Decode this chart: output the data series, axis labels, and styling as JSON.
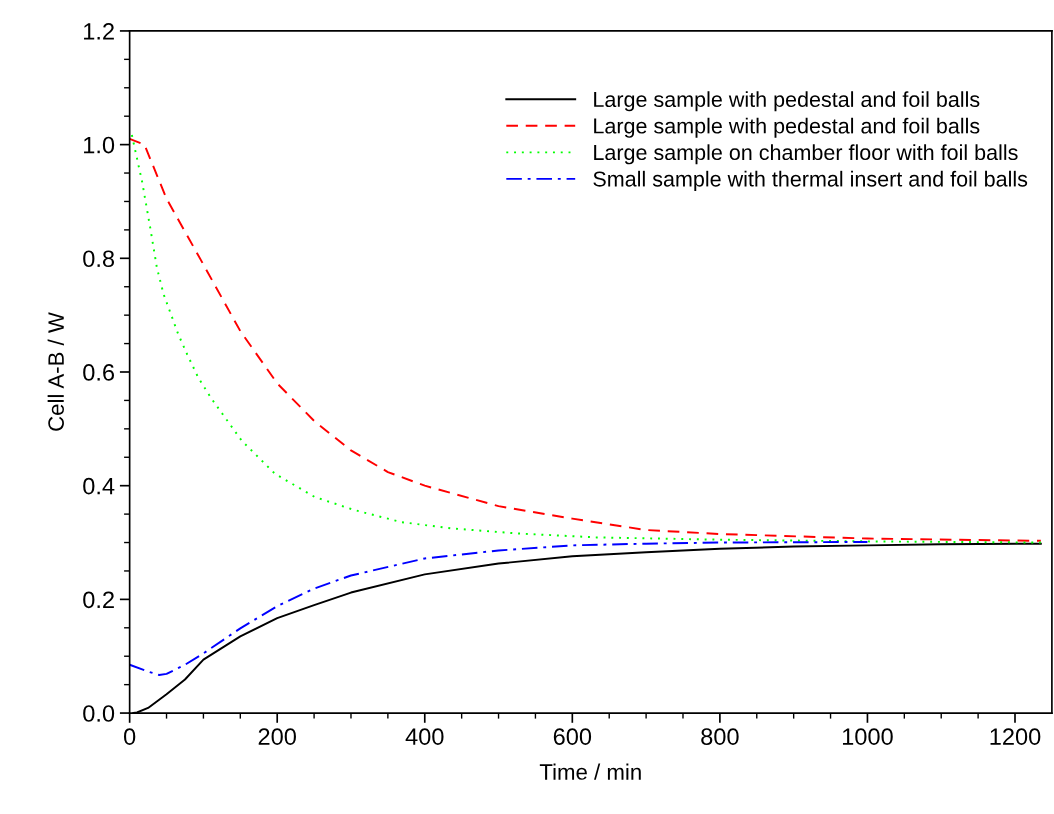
{
  "chart_data": {
    "type": "line",
    "xlabel": "Time / min",
    "ylabel": "Cell A-B / W",
    "xlim": [
      0,
      1250
    ],
    "ylim": [
      0,
      1.2
    ],
    "xticks": [
      0,
      {
        "value": 50,
        "label": null
      },
      {
        "value": 100,
        "label": null
      },
      {
        "value": 150,
        "label": null
      },
      200,
      {
        "value": 250,
        "label": null
      },
      {
        "value": 300,
        "label": null
      },
      {
        "value": 350,
        "label": null
      },
      400,
      {
        "value": 450,
        "label": null
      },
      {
        "value": 500,
        "label": null
      },
      {
        "value": 550,
        "label": null
      },
      600,
      {
        "value": 650,
        "label": null
      },
      {
        "value": 700,
        "label": null
      },
      {
        "value": 750,
        "label": null
      },
      800,
      {
        "value": 850,
        "label": null
      },
      {
        "value": 900,
        "label": null
      },
      {
        "value": 950,
        "label": null
      },
      1000,
      {
        "value": 1050,
        "label": null
      },
      {
        "value": 1100,
        "label": null
      },
      {
        "value": 1150,
        "label": null
      },
      1200
    ],
    "yticks": [
      {
        "value": 0,
        "label": "0.0"
      },
      {
        "value": 0.05,
        "label": null
      },
      {
        "value": 0.1,
        "label": null
      },
      {
        "value": 0.15,
        "label": null
      },
      0.2,
      {
        "value": 0.25,
        "label": null
      },
      {
        "value": 0.3,
        "label": null
      },
      {
        "value": 0.35,
        "label": null
      },
      0.4,
      {
        "value": 0.45,
        "label": null
      },
      {
        "value": 0.5,
        "label": null
      },
      {
        "value": 0.55,
        "label": null
      },
      0.6,
      {
        "value": 0.65,
        "label": null
      },
      {
        "value": 0.7,
        "label": null
      },
      {
        "value": 0.75,
        "label": null
      },
      0.8,
      {
        "value": 0.85,
        "label": null
      },
      {
        "value": 0.9,
        "label": null
      },
      {
        "value": 0.95,
        "label": null
      },
      {
        "value": 1.0,
        "label": "1.0"
      },
      {
        "value": 1.05,
        "label": null
      },
      {
        "value": 1.1,
        "label": null
      },
      {
        "value": 1.15,
        "label": null
      },
      1.2
    ],
    "grid": false,
    "legend": "top right",
    "marker": "none",
    "series": [
      {
        "name": "Large sample with pedestal and foil balls",
        "color": "#000000",
        "line_style": "solid",
        "x": [
          5,
          10,
          25,
          50,
          75,
          100,
          150,
          200,
          250,
          300,
          400,
          500,
          600,
          700,
          800,
          900,
          1000,
          1100,
          1235
        ],
        "values": [
          0.0,
          0.001,
          0.009,
          0.033,
          0.059,
          0.094,
          0.135,
          0.167,
          0.19,
          0.212,
          0.244,
          0.263,
          0.276,
          0.283,
          0.289,
          0.293,
          0.295,
          0.297,
          0.298
        ]
      },
      {
        "name": "Large sample with pedestal and foil balls",
        "color": "#ff0000",
        "line_style": "dashed",
        "x": [
          0,
          20,
          50,
          100,
          150,
          200,
          250,
          300,
          350,
          400,
          500,
          600,
          700,
          800,
          1000,
          1235
        ],
        "values": [
          1.01,
          1.0,
          0.905,
          0.789,
          0.672,
          0.58,
          0.514,
          0.462,
          0.424,
          0.4,
          0.364,
          0.342,
          0.322,
          0.315,
          0.307,
          0.303
        ]
      },
      {
        "name": "Large sample on chamber floor with foil balls",
        "color": "#00ff00",
        "line_style": "dotted",
        "x": [
          3,
          17,
          28,
          37,
          46,
          66,
          78,
          93,
          111,
          152,
          197,
          251,
          305,
          368,
          435,
          525,
          633,
          800,
          1000,
          1235
        ],
        "values": [
          1.017,
          0.934,
          0.853,
          0.783,
          0.737,
          0.666,
          0.631,
          0.59,
          0.553,
          0.479,
          0.421,
          0.38,
          0.357,
          0.336,
          0.325,
          0.316,
          0.309,
          0.305,
          0.302,
          0.3
        ]
      },
      {
        "name": "Small sample with thermal insert and foil balls",
        "color": "#0000ff",
        "line_style": "dashdot",
        "x": [
          0,
          25,
          40,
          50,
          75,
          100,
          150,
          200,
          250,
          300,
          400,
          500,
          600,
          700,
          800,
          1000
        ],
        "values": [
          0.085,
          0.073,
          0.067,
          0.069,
          0.085,
          0.105,
          0.149,
          0.188,
          0.219,
          0.242,
          0.272,
          0.286,
          0.295,
          0.298,
          0.3,
          0.301
        ]
      }
    ]
  }
}
